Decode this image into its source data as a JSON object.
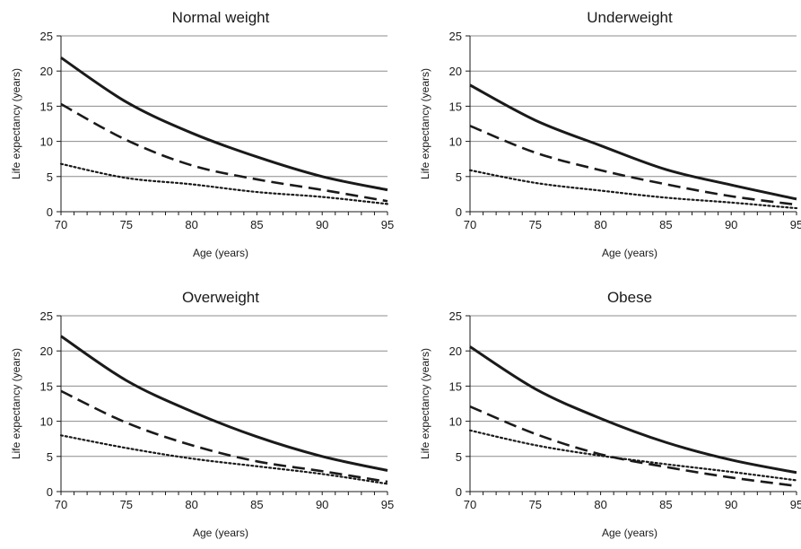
{
  "chart_data": [
    {
      "type": "line",
      "title": "Normal weight",
      "xlabel": "Age (years)",
      "ylabel": "Life expectancy (years)",
      "xlim": [
        70,
        95
      ],
      "ylim": [
        0,
        25
      ],
      "xticks": [
        70,
        75,
        80,
        85,
        90,
        95
      ],
      "yticks": [
        0,
        5,
        10,
        15,
        20,
        25
      ],
      "grid": "horizontal",
      "x": [
        70,
        75,
        80,
        85,
        90,
        95
      ],
      "series": [
        {
          "style": "solid",
          "values": [
            21.9,
            15.6,
            11.2,
            7.8,
            5.0,
            3.1
          ]
        },
        {
          "style": "dashed",
          "values": [
            15.3,
            10.2,
            6.6,
            4.6,
            3.1,
            1.5
          ]
        },
        {
          "style": "dotted",
          "values": [
            6.8,
            4.8,
            3.9,
            2.8,
            2.1,
            1.1
          ]
        }
      ]
    },
    {
      "type": "line",
      "title": "Underweight",
      "xlabel": "Age (years)",
      "ylabel": "Life expectancy (years)",
      "xlim": [
        70,
        95
      ],
      "ylim": [
        0,
        25
      ],
      "xticks": [
        70,
        75,
        80,
        85,
        90,
        95
      ],
      "yticks": [
        0,
        5,
        10,
        15,
        20,
        25
      ],
      "grid": "horizontal",
      "x": [
        70,
        75,
        80,
        85,
        90,
        95
      ],
      "series": [
        {
          "style": "solid",
          "values": [
            18.0,
            13.0,
            9.4,
            6.0,
            3.8,
            1.8
          ]
        },
        {
          "style": "dashed",
          "values": [
            12.2,
            8.4,
            5.9,
            3.9,
            2.2,
            1.0
          ]
        },
        {
          "style": "dotted",
          "values": [
            5.9,
            4.1,
            3.0,
            2.0,
            1.3,
            0.5
          ]
        }
      ]
    },
    {
      "type": "line",
      "title": "Overweight",
      "xlabel": "Age (years)",
      "ylabel": "Life expectancy (years)",
      "xlim": [
        70,
        95
      ],
      "ylim": [
        0,
        25
      ],
      "xticks": [
        70,
        75,
        80,
        85,
        90,
        95
      ],
      "yticks": [
        0,
        5,
        10,
        15,
        20,
        25
      ],
      "grid": "horizontal",
      "x": [
        70,
        75,
        80,
        85,
        90,
        95
      ],
      "series": [
        {
          "style": "solid",
          "values": [
            22.1,
            15.8,
            11.4,
            7.8,
            5.0,
            3.0
          ]
        },
        {
          "style": "dashed",
          "values": [
            14.3,
            9.8,
            6.6,
            4.3,
            2.9,
            1.4
          ]
        },
        {
          "style": "dotted",
          "values": [
            8.0,
            6.2,
            4.7,
            3.6,
            2.5,
            1.1
          ]
        }
      ]
    },
    {
      "type": "line",
      "title": "Obese",
      "xlabel": "Age (years)",
      "ylabel": "Life expectancy (years)",
      "xlim": [
        70,
        95
      ],
      "ylim": [
        0,
        25
      ],
      "xticks": [
        70,
        75,
        80,
        85,
        90,
        95
      ],
      "yticks": [
        0,
        5,
        10,
        15,
        20,
        25
      ],
      "grid": "horizontal",
      "x": [
        70,
        75,
        80,
        85,
        90,
        95
      ],
      "series": [
        {
          "style": "solid",
          "values": [
            20.6,
            14.6,
            10.4,
            7.0,
            4.5,
            2.7
          ]
        },
        {
          "style": "dashed",
          "values": [
            12.1,
            8.2,
            5.3,
            3.5,
            2.0,
            0.8
          ]
        },
        {
          "style": "dotted",
          "values": [
            8.7,
            6.6,
            5.1,
            3.9,
            2.8,
            1.6
          ]
        }
      ]
    }
  ],
  "colors": {
    "line": "#1a1a1a",
    "grid": "#8c8c8c",
    "axis": "#1a1a1a"
  }
}
